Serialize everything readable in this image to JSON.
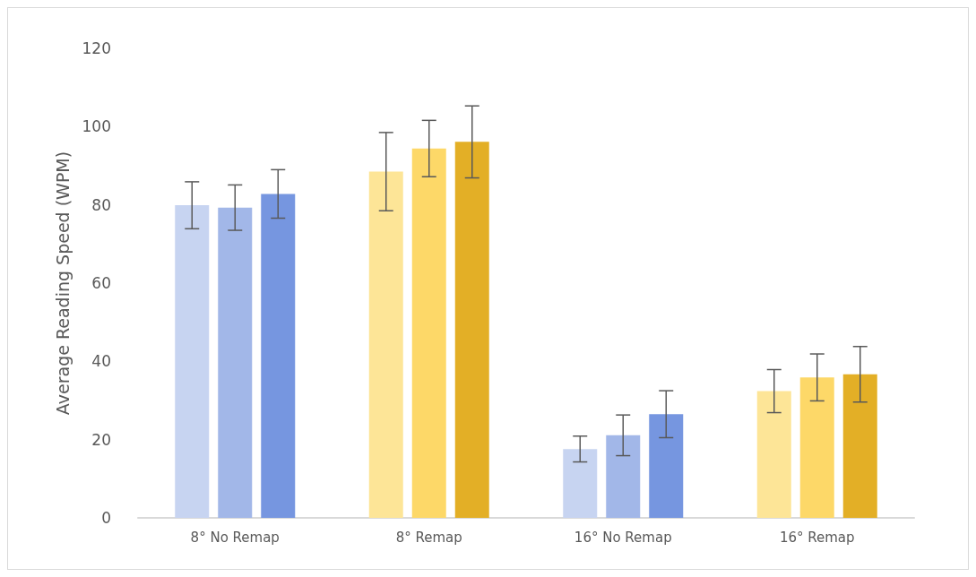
{
  "chart_data": {
    "type": "bar",
    "ylabel": "Average Reading Speed (WPM)",
    "categories": [
      "8° No Remap",
      "8° Remap",
      "16° No Remap",
      "16° Remap"
    ],
    "series": [
      {
        "colors": [
          "#c7d4f1",
          "#fde597",
          "#c7d4f1",
          "#fde597"
        ],
        "values": [
          79.9,
          88.5,
          17.6,
          32.4
        ],
        "errors": [
          6,
          10,
          3.3,
          5.5
        ]
      },
      {
        "colors": [
          "#a2b7e8",
          "#fdd868",
          "#a2b7e8",
          "#fdd868"
        ],
        "values": [
          79.3,
          94.4,
          21.1,
          35.9
        ],
        "errors": [
          5.8,
          7.2,
          5.2,
          6
        ]
      },
      {
        "colors": [
          "#7696e0",
          "#e3af26",
          "#7696e0",
          "#e3af26"
        ],
        "values": [
          82.8,
          96.1,
          26.5,
          36.7
        ],
        "errors": [
          6.2,
          9.2,
          6,
          7.1
        ]
      }
    ],
    "ylim": [
      0,
      120
    ],
    "yticks": [
      0,
      20,
      40,
      60,
      80,
      100,
      120
    ],
    "grid": false
  }
}
